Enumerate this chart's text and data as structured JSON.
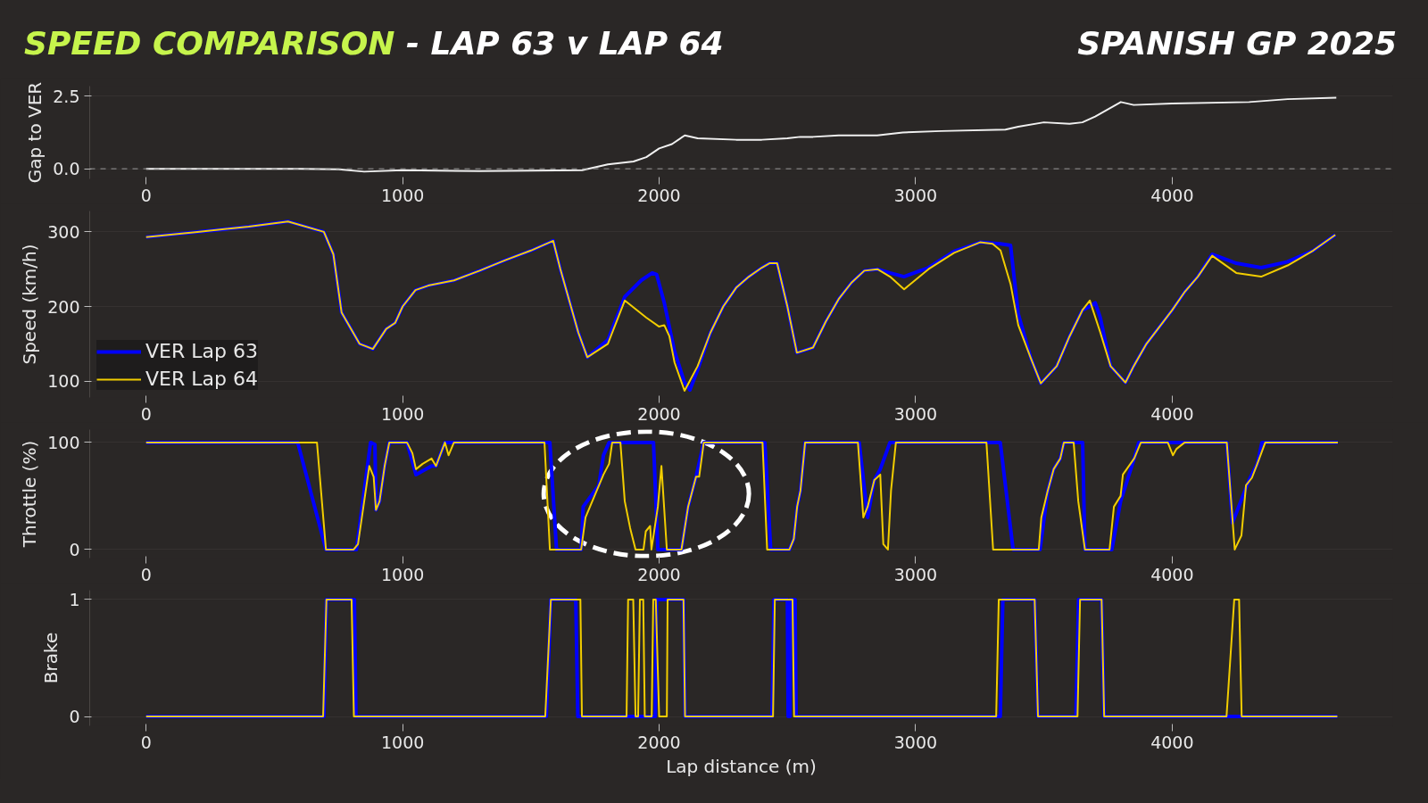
{
  "chart_data": [
    {
      "type": "line",
      "title": "SPEED COMPARISON - LAP 63 v LAP 64",
      "subtitle": "SPANISH GP 2025",
      "ylabel": "Gap to VER",
      "xlim": [
        -220,
        4860
      ],
      "xticks": [
        0,
        1000,
        2000,
        3000,
        4000
      ],
      "ylim": [
        -0.35,
        2.85
      ],
      "yticks": [
        {
          "value": 0,
          "label": "0.0"
        },
        2.5
      ],
      "grid": "y",
      "ref_lines": [
        {
          "axis": "y",
          "value": 0,
          "color": "#9a9a9a",
          "line_style": "dashed"
        }
      ],
      "series": [
        {
          "color": "#f0f0f0",
          "x": [
            0,
            600,
            750,
            850,
            1000,
            1300,
            1700,
            1800,
            1900,
            1950,
            2000,
            2050,
            2100,
            2150,
            2300,
            2400,
            2500,
            2550,
            2600,
            2700,
            2850,
            2950,
            3100,
            3350,
            3400,
            3500,
            3600,
            3650,
            3700,
            3800,
            3850,
            4000,
            4300,
            4450,
            4640
          ],
          "values": [
            0,
            0,
            -0.02,
            -0.1,
            -0.05,
            -0.08,
            -0.05,
            0.15,
            0.25,
            0.4,
            0.7,
            0.85,
            1.15,
            1.05,
            1.0,
            1.0,
            1.05,
            1.1,
            1.1,
            1.15,
            1.15,
            1.25,
            1.3,
            1.35,
            1.45,
            1.6,
            1.55,
            1.6,
            1.8,
            2.3,
            2.2,
            2.25,
            2.3,
            2.4,
            2.45
          ]
        }
      ]
    },
    {
      "type": "line",
      "ylabel": "Speed (km/h)",
      "xlim": [
        -220,
        4860
      ],
      "xticks": [
        0,
        1000,
        2000,
        3000,
        4000
      ],
      "ylim": [
        78,
        328
      ],
      "yticks": [
        100,
        200,
        300
      ],
      "grid": "y",
      "legend": "bottom left",
      "series": [
        {
          "name": "VER Lap 63",
          "color": "#0000ff",
          "x": [
            0,
            200,
            400,
            553,
            693,
            730,
            762,
            832,
            884,
            936,
            971,
            1000,
            1050,
            1100,
            1200,
            1300,
            1400,
            1500,
            1587,
            1615,
            1685,
            1720,
            1800,
            1866,
            1930,
            1973,
            1990,
            2020,
            2060,
            2099,
            2120,
            2150,
            2200,
            2250,
            2300,
            2350,
            2400,
            2430,
            2460,
            2500,
            2537,
            2600,
            2650,
            2700,
            2750,
            2800,
            2851,
            2900,
            2955,
            3050,
            3150,
            3251,
            3300,
            3331,
            3370,
            3400,
            3450,
            3488,
            3550,
            3600,
            3650,
            3679,
            3700,
            3720,
            3760,
            3818,
            3850,
            3900,
            4000,
            4050,
            4100,
            4156,
            4250,
            4347,
            4450,
            4550,
            4636
          ],
          "values": [
            293,
            300,
            307,
            314,
            300,
            270,
            192,
            150,
            143,
            170,
            178,
            200,
            222,
            228,
            235,
            248,
            262,
            275,
            288,
            250,
            165,
            132,
            155,
            213,
            235,
            245,
            243,
            205,
            140,
            98,
            88,
            115,
            165,
            200,
            225,
            240,
            252,
            258,
            258,
            200,
            138,
            145,
            180,
            210,
            232,
            248,
            250,
            245,
            240,
            252,
            274,
            286,
            285,
            284,
            282,
            190,
            130,
            97,
            120,
            160,
            195,
            200,
            205,
            185,
            120,
            98,
            120,
            150,
            195,
            220,
            240,
            270,
            258,
            252,
            260,
            275,
            296
          ]
        },
        {
          "name": "VER Lap 64",
          "color": "#f2cd00",
          "x": [
            0,
            200,
            400,
            553,
            693,
            730,
            762,
            832,
            884,
            936,
            971,
            1000,
            1050,
            1100,
            1200,
            1300,
            1400,
            1500,
            1587,
            1615,
            1685,
            1720,
            1800,
            1866,
            1950,
            2000,
            2020,
            2040,
            2060,
            2099,
            2150,
            2200,
            2250,
            2300,
            2350,
            2400,
            2430,
            2460,
            2500,
            2537,
            2600,
            2650,
            2700,
            2750,
            2800,
            2851,
            2900,
            2955,
            3050,
            3150,
            3251,
            3300,
            3331,
            3370,
            3400,
            3450,
            3488,
            3550,
            3600,
            3650,
            3679,
            3720,
            3760,
            3818,
            3850,
            3900,
            4000,
            4050,
            4100,
            4156,
            4250,
            4347,
            4450,
            4550,
            4636
          ],
          "values": [
            293,
            300,
            307,
            314,
            300,
            270,
            192,
            150,
            143,
            170,
            178,
            200,
            222,
            228,
            235,
            248,
            262,
            275,
            288,
            250,
            165,
            132,
            150,
            208,
            185,
            173,
            175,
            160,
            125,
            87,
            120,
            165,
            200,
            225,
            240,
            252,
            258,
            258,
            200,
            138,
            145,
            180,
            210,
            232,
            248,
            250,
            240,
            223,
            250,
            272,
            286,
            284,
            275,
            230,
            175,
            130,
            97,
            120,
            160,
            195,
            208,
            165,
            120,
            98,
            120,
            150,
            195,
            220,
            240,
            268,
            245,
            240,
            255,
            275,
            296
          ]
        }
      ]
    },
    {
      "type": "line",
      "ylabel": "Throttle (%)",
      "xlim": [
        -220,
        4860
      ],
      "xticks": [
        0,
        1000,
        2000,
        3000,
        4000
      ],
      "ylim": [
        -8,
        112
      ],
      "yticks": [
        0,
        100
      ],
      "grid": "y",
      "series": [
        {
          "color": "#0000ff",
          "x": [
            0,
            591,
            701,
            820,
            875,
            892,
            896,
            910,
            930,
            948,
            1017,
            1052,
            1113,
            1130,
            1165,
            1200,
            1574,
            1600,
            1696,
            1704,
            1765,
            1783,
            1805,
            1978,
            1995,
            2087,
            2113,
            2144,
            2174,
            2412,
            2435,
            2508,
            2525,
            2538,
            2551,
            2569,
            2780,
            2813,
            2839,
            2862,
            2900,
            3330,
            3380,
            3485,
            3515,
            3538,
            3564,
            3578,
            3651,
            3660,
            3765,
            3799,
            3852,
            3870,
            4213,
            4235,
            4300,
            4332,
            4350,
            4646
          ],
          "values": [
            100,
            100,
            0,
            0,
            100,
            98,
            37,
            45,
            78,
            100,
            100,
            70,
            78,
            78,
            100,
            100,
            100,
            0,
            0,
            40,
            60,
            88,
            100,
            100,
            0,
            0,
            40,
            68,
            100,
            100,
            0,
            0,
            10,
            40,
            55,
            100,
            100,
            30,
            65,
            75,
            100,
            100,
            0,
            0,
            55,
            75,
            85,
            100,
            100,
            0,
            0,
            45,
            85,
            100,
            100,
            25,
            65,
            80,
            100,
            100
          ]
        },
        {
          "color": "#f2cd00",
          "x": [
            0,
            666,
            701,
            809,
            826,
            870,
            887,
            896,
            910,
            930,
            948,
            1017,
            1038,
            1052,
            1078,
            1113,
            1130,
            1165,
            1179,
            1200,
            1553,
            1574,
            1696,
            1713,
            1748,
            1783,
            1805,
            1817,
            1849,
            1866,
            1887,
            1908,
            1939,
            1948,
            1965,
            1970,
            1995,
            2009,
            2030,
            2087,
            2113,
            2144,
            2156,
            2174,
            2403,
            2421,
            2508,
            2525,
            2538,
            2551,
            2569,
            2775,
            2796,
            2813,
            2839,
            2862,
            2874,
            2892,
            2904,
            2923,
            3276,
            3302,
            3480,
            3490,
            3515,
            3538,
            3564,
            3578,
            3616,
            3634,
            3660,
            3756,
            3773,
            3799,
            3808,
            3852,
            3878,
            3983,
            4003,
            4017,
            4049,
            4213,
            4244,
            4270,
            4288,
            4311,
            4332,
            4363,
            4646
          ],
          "values": [
            100,
            100,
            0,
            0,
            5,
            78,
            68,
            37,
            45,
            78,
            100,
            100,
            90,
            75,
            80,
            85,
            78,
            100,
            88,
            100,
            100,
            0,
            0,
            30,
            50,
            70,
            80,
            100,
            100,
            45,
            20,
            0,
            0,
            17,
            22,
            0,
            40,
            78,
            0,
            0,
            40,
            68,
            68,
            100,
            100,
            0,
            0,
            10,
            40,
            55,
            100,
            100,
            30,
            40,
            65,
            70,
            5,
            0,
            55,
            100,
            100,
            0,
            0,
            30,
            55,
            75,
            85,
            100,
            100,
            45,
            0,
            0,
            40,
            50,
            70,
            85,
            100,
            100,
            88,
            94,
            100,
            100,
            0,
            13,
            60,
            67,
            80,
            100,
            100
          ]
        }
      ]
    },
    {
      "type": "line",
      "ylabel": "Brake",
      "xlabel": "Lap distance (m)",
      "xlim": [
        -220,
        4860
      ],
      "xticks": [
        0,
        1000,
        2000,
        3000,
        4000
      ],
      "ylim": [
        -0.08,
        1.08
      ],
      "yticks": [
        0,
        1
      ],
      "grid": "y",
      "series": [
        {
          "color": "#0000ff",
          "x": [
            0,
            693,
            703,
            812,
            818,
            1560,
            1578,
            1675,
            1683,
            1985,
            1990,
            2095,
            2101,
            2440,
            2448,
            2500,
            2503,
            2510,
            2512,
            2530,
            2534,
            3330,
            3340,
            3464,
            3477,
            3625,
            3635,
            3725,
            3735,
            4644
          ],
          "values": [
            0,
            0,
            1,
            1,
            0,
            0,
            1,
            1,
            0,
            0,
            1,
            1,
            0,
            0,
            1,
            1,
            0,
            0,
            1,
            1,
            0,
            0,
            1,
            1,
            0,
            0,
            1,
            1,
            0,
            0
          ]
        },
        {
          "color": "#f2cd00",
          "x": [
            0,
            690,
            703,
            801,
            810,
            1556,
            1578,
            1693,
            1699,
            1873,
            1879,
            1899,
            1908,
            1918,
            1925,
            1938,
            1944,
            1971,
            1977,
            1987,
            2000,
            2030,
            2033,
            2095,
            2101,
            2444,
            2451,
            2520,
            2526,
            3314,
            3324,
            3464,
            3477,
            3631,
            3641,
            3725,
            3735,
            4212,
            4242,
            4261,
            4271,
            4644
          ],
          "values": [
            0,
            0,
            1,
            1,
            0,
            0,
            1,
            1,
            0,
            0,
            1,
            1,
            0,
            0,
            1,
            1,
            0,
            0,
            1,
            1,
            0,
            0,
            1,
            1,
            0,
            0,
            1,
            1,
            0,
            0,
            1,
            1,
            0,
            0,
            1,
            1,
            0,
            0,
            1,
            1,
            0,
            0
          ]
        }
      ]
    }
  ]
}
